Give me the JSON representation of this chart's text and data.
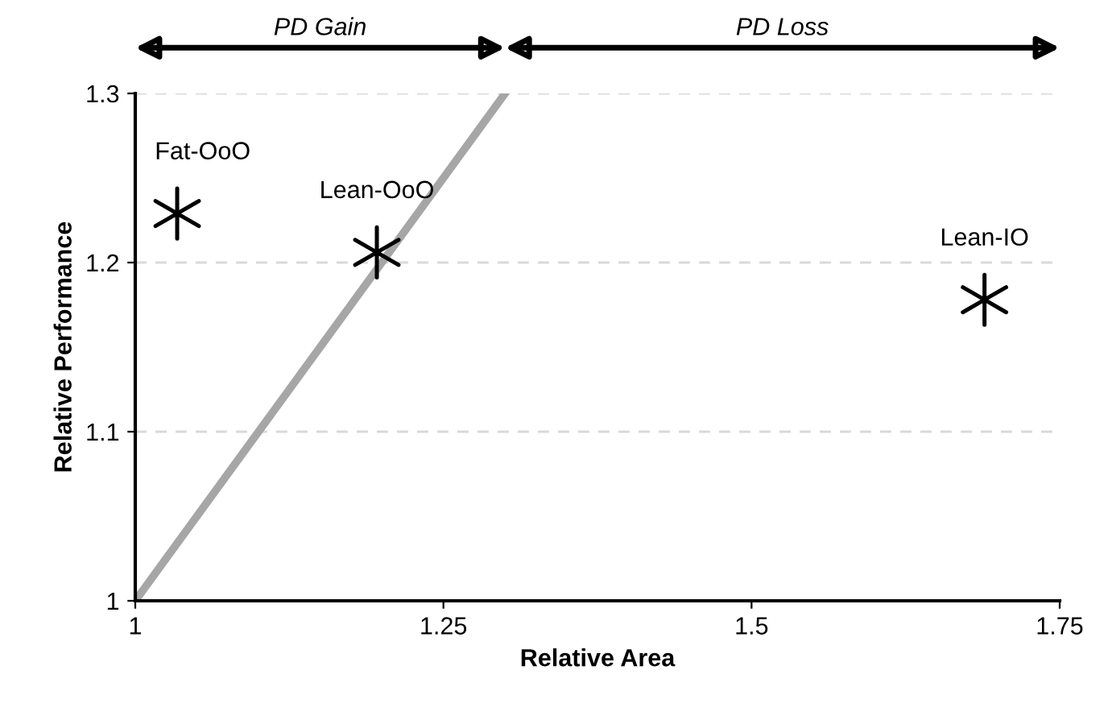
{
  "chart_data": {
    "type": "scatter",
    "xlabel": "Relative Area",
    "ylabel": "Relative Performance",
    "annotations": [
      "PD Gain",
      "PD Loss",
      {
        "text": "Fat-OoO",
        "x": 1.034,
        "y": 1.229
      },
      {
        "text": "Lean-OoO",
        "x": 1.196,
        "y": 1.206
      },
      {
        "text": "Lean-IO",
        "x": 1.689,
        "y": 1.178
      }
    ],
    "series": [
      {
        "color": "#000000",
        "marker": "cross",
        "x": [
          1.034,
          1.196,
          1.689
        ],
        "values": [
          1.229,
          1.206,
          1.178
        ]
      },
      {
        "type": "line",
        "color": "#a6a6a6",
        "marker": "none",
        "line_style": "solid",
        "x": [
          1,
          1.3
        ],
        "values": [
          1,
          1.3
        ]
      }
    ],
    "xlim": [
      1,
      1.75
    ],
    "ylim": [
      1,
      1.3
    ],
    "xticks": [
      1,
      1.25,
      1.5,
      1.75
    ],
    "yticks": [
      1,
      1.1,
      1.2,
      1.3
    ],
    "grid": "y"
  }
}
